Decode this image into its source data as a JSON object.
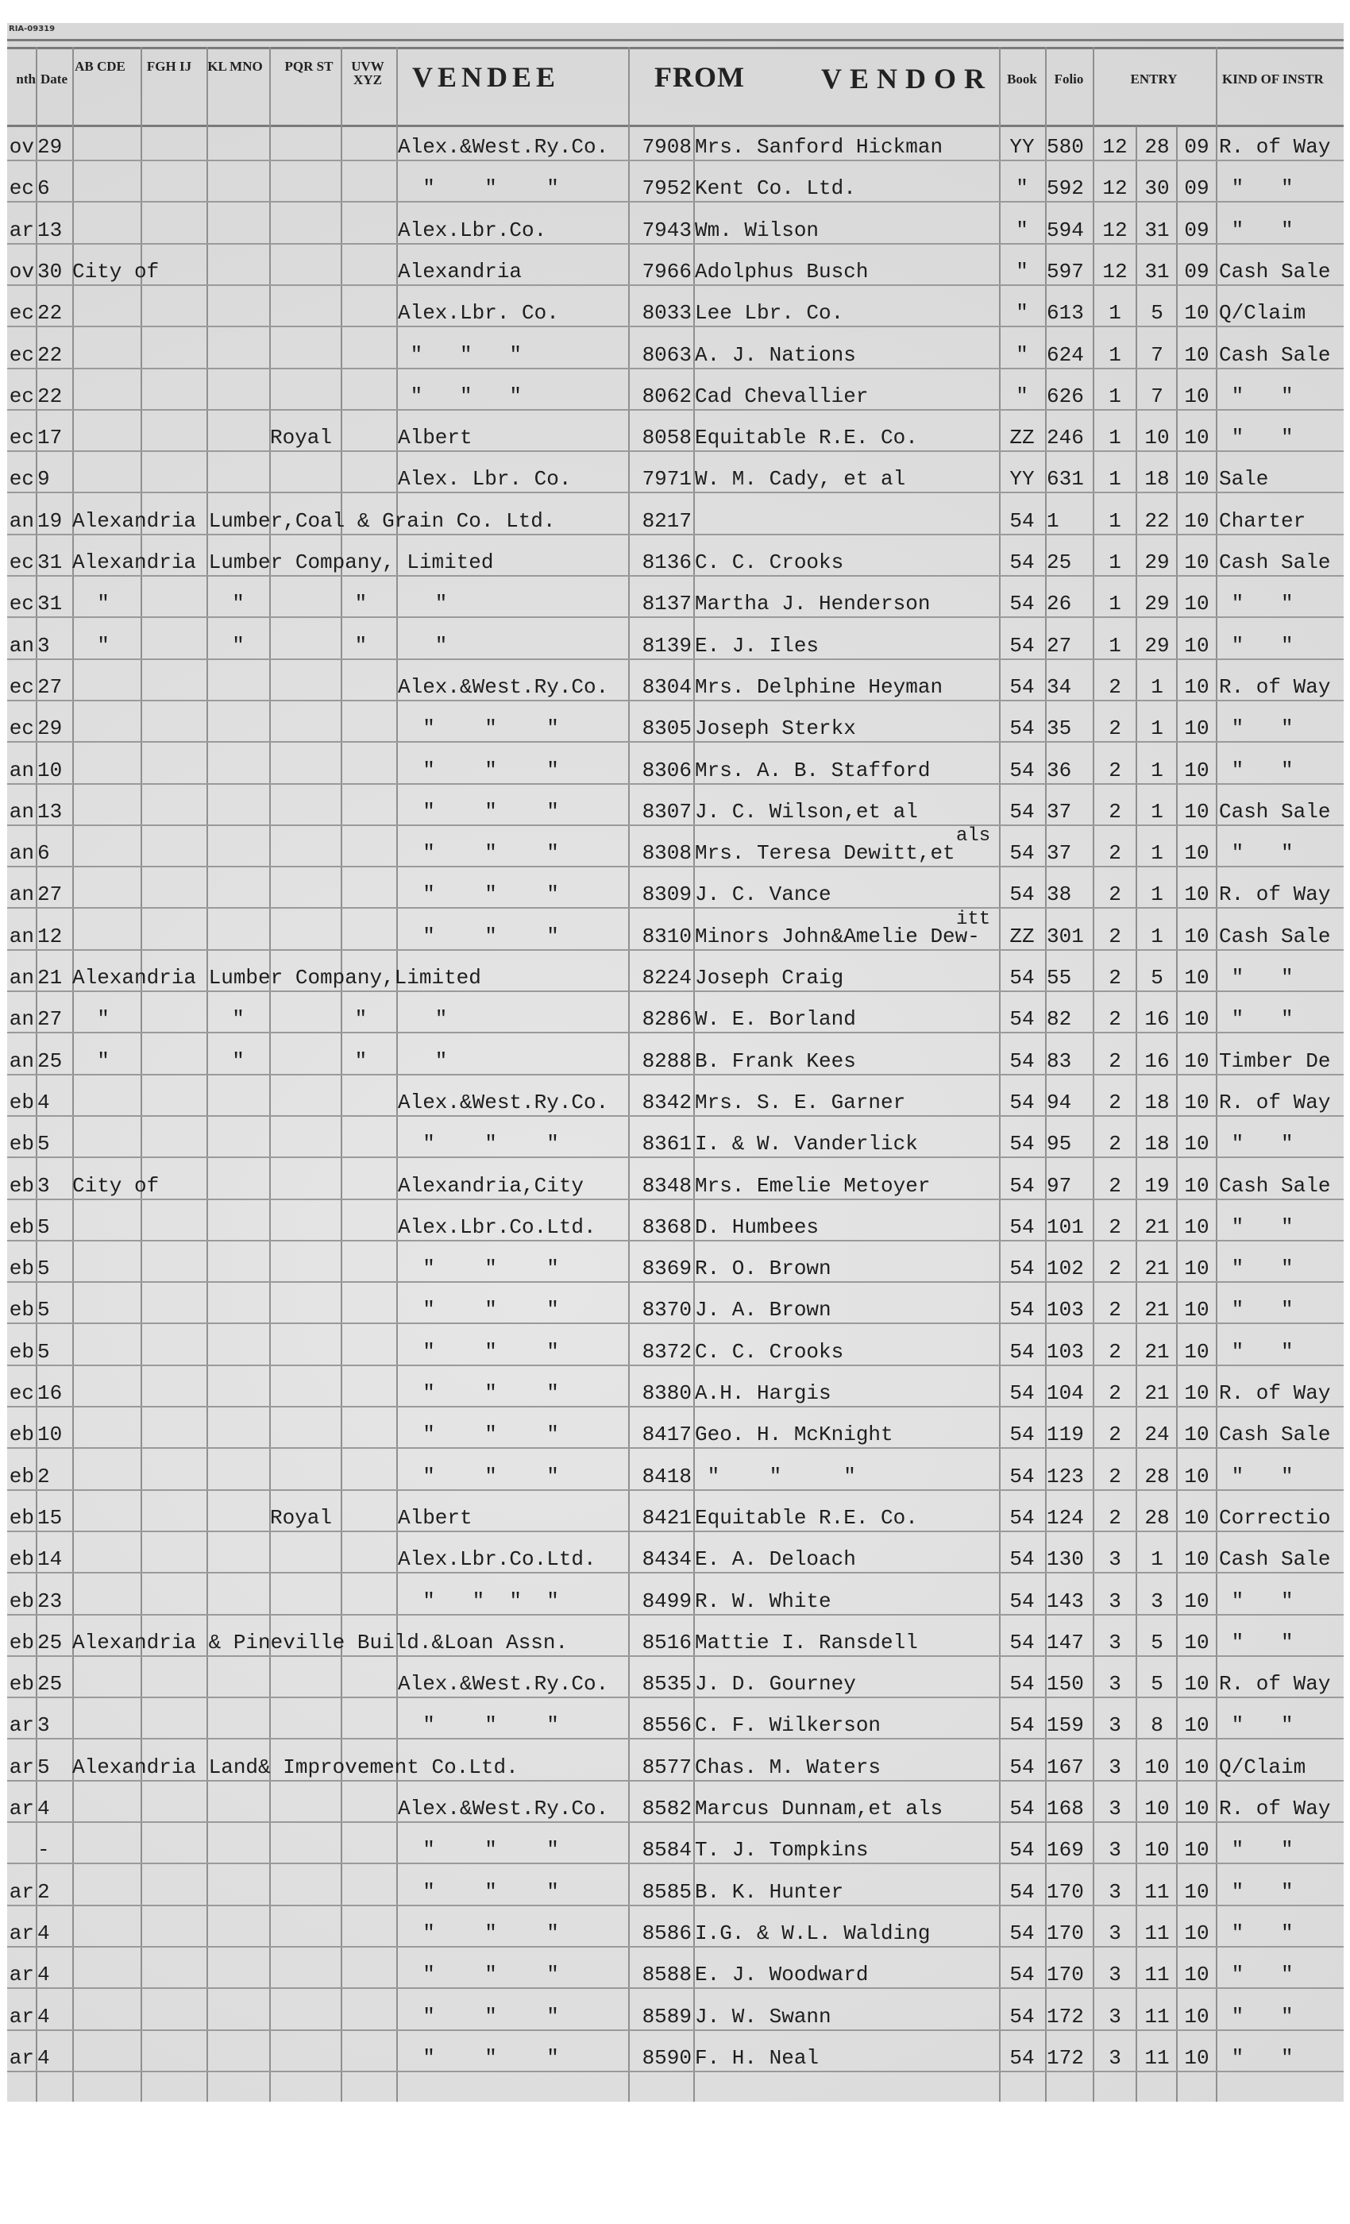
{
  "stamp": "RIA-09319",
  "header": {
    "month": "nth",
    "date": "Date",
    "ab": "AB CDE",
    "fg": "FGH IJ",
    "kl": "KL MNO",
    "pq": "PQR ST",
    "uv": "UVW XYZ",
    "vendee": "VENDEE",
    "from": "FROM",
    "vendor": "VENDOR",
    "book": "Book",
    "folio": "Folio",
    "entry": "ENTRY",
    "kind": "KIND OF INSTR"
  },
  "rows": [
    {
      "m": "ov",
      "d": "29",
      "ve": "Alex.&West.Ry.Co.",
      "no": "7908",
      "vo": "Mrs. Sanford Hickman",
      "bk": "YY",
      "fo": "580",
      "em": "12",
      "ed": "28",
      "ey": "09",
      "k": "R. of Way"
    },
    {
      "m": "ec",
      "d": "6",
      "ve": "  \"    \"    \"",
      "no": "7952",
      "vo": "Kent Co. Ltd.",
      "bk": "\"",
      "fo": "592",
      "em": "12",
      "ed": "30",
      "ey": "09",
      "k": " \"   \""
    },
    {
      "m": "ar",
      "d": "13",
      "ve": "Alex.Lbr.Co.",
      "no": "7943",
      "vo": "Wm. Wilson",
      "bk": "\"",
      "fo": "594",
      "em": "12",
      "ed": "31",
      "ey": "09",
      "k": " \"   \""
    },
    {
      "m": "ov",
      "d": "30",
      "ab": "City of",
      "ve": "Alexandria",
      "no": "7966",
      "vo": "Adolphus Busch",
      "bk": "\"",
      "fo": "597",
      "em": "12",
      "ed": "31",
      "ey": "09",
      "k": "Cash Sale"
    },
    {
      "m": "ec",
      "d": "22",
      "ve": "Alex.Lbr. Co.",
      "no": "8033",
      "vo": "Lee Lbr. Co.",
      "bk": "\"",
      "fo": "613",
      "em": "1",
      "ed": "5",
      "ey": "10",
      "k": "Q/Claim"
    },
    {
      "m": "ec",
      "d": "22",
      "ve": " \"   \"   \"",
      "no": "8063",
      "vo": "A. J. Nations",
      "bk": "\"",
      "fo": "624",
      "em": "1",
      "ed": "7",
      "ey": "10",
      "k": "Cash Sale"
    },
    {
      "m": "ec",
      "d": "22",
      "ve": " \"   \"   \"",
      "no": "8062",
      "vo": "Cad Chevallier",
      "bk": "\"",
      "fo": "626",
      "em": "1",
      "ed": "7",
      "ey": "10",
      "k": " \"   \""
    },
    {
      "m": "ec",
      "d": "17",
      "pq": "Royal",
      "ve": "Albert",
      "no": "8058",
      "vo": "Equitable R.E. Co.",
      "bk": "ZZ",
      "fo": "246",
      "em": "1",
      "ed": "10",
      "ey": "10",
      "k": " \"   \""
    },
    {
      "m": "ec",
      "d": "9",
      "ve": "Alex. Lbr. Co.",
      "no": "7971",
      "vo": "W. M. Cady, et al",
      "bk": "YY",
      "fo": "631",
      "em": "1",
      "ed": "18",
      "ey": "10",
      "k": "Sale"
    },
    {
      "m": "an",
      "d": "19",
      "ab": "Alexandria Lumber,Coal & Grain Co. Ltd.",
      "no": "8217",
      "vo": "",
      "bk": "54",
      "fo": "1",
      "em": "1",
      "ed": "22",
      "ey": "10",
      "k": "Charter"
    },
    {
      "m": "ec",
      "d": "31",
      "ab": "Alexandria Lumber Company, Limited",
      "no": "8136",
      "vo": "C. C. Crooks",
      "bk": "54",
      "fo": "25",
      "em": "1",
      "ed": "29",
      "ey": "10",
      "k": "Cash Sale"
    },
    {
      "m": "ec",
      "d": "31",
      "ab": "  \"",
      "kl": "  \"",
      "uv": " \"",
      "ve": "   \"",
      "no": "8137",
      "vo": "Martha J. Henderson",
      "bk": "54",
      "fo": "26",
      "em": "1",
      "ed": "29",
      "ey": "10",
      "k": " \"   \""
    },
    {
      "m": "an",
      "d": "3",
      "ab": "  \"",
      "kl": "  \"",
      "uv": " \"",
      "ve": "   \"",
      "no": "8139",
      "vo": "E. J. Iles",
      "bk": "54",
      "fo": "27",
      "em": "1",
      "ed": "29",
      "ey": "10",
      "k": " \"   \""
    },
    {
      "m": "ec",
      "d": "27",
      "ve": "Alex.&West.Ry.Co.",
      "no": "8304",
      "vo": "Mrs. Delphine Heyman",
      "bk": "54",
      "fo": "34",
      "em": "2",
      "ed": "1",
      "ey": "10",
      "k": "R. of Way"
    },
    {
      "m": "ec",
      "d": "29",
      "ve": "  \"    \"    \"",
      "no": "8305",
      "vo": "Joseph Sterkx",
      "bk": "54",
      "fo": "35",
      "em": "2",
      "ed": "1",
      "ey": "10",
      "k": " \"   \""
    },
    {
      "m": "an",
      "d": "10",
      "ve": "  \"    \"    \"",
      "no": "8306",
      "vo": "Mrs. A. B. Stafford",
      "bk": "54",
      "fo": "36",
      "em": "2",
      "ed": "1",
      "ey": "10",
      "k": " \"   \""
    },
    {
      "m": "an",
      "d": "13",
      "ve": "  \"    \"    \"",
      "no": "8307",
      "vo": "J. C. Wilson,et al",
      "bk": "54",
      "fo": "37",
      "em": "2",
      "ed": "1",
      "ey": "10",
      "k": "Cash Sale"
    },
    {
      "m": "an",
      "d": "6",
      "ve": "  \"    \"    \"",
      "no": "8308",
      "vo": "Mrs. Teresa Dewitt,et",
      "vn": "als",
      "bk": "54",
      "fo": "37",
      "em": "2",
      "ed": "1",
      "ey": "10",
      "k": " \"   \""
    },
    {
      "m": "an",
      "d": "27",
      "ve": "  \"    \"    \"",
      "no": "8309",
      "vo": "J. C. Vance",
      "bk": "54",
      "fo": "38",
      "em": "2",
      "ed": "1",
      "ey": "10",
      "k": "R. of Way"
    },
    {
      "m": "an",
      "d": "12",
      "ve": "  \"    \"    \"",
      "no": "8310",
      "vo": "Minors John&Amelie Dew-",
      "vn": "itt",
      "bk": "ZZ",
      "fo": "301",
      "em": "2",
      "ed": "1",
      "ey": "10",
      "k": "Cash Sale"
    },
    {
      "m": "an",
      "d": "21",
      "ab": "Alexandria Lumber Company,Limited",
      "no": "8224",
      "vo": "Joseph Craig",
      "bk": "54",
      "fo": "55",
      "em": "2",
      "ed": "5",
      "ey": "10",
      "k": " \"   \""
    },
    {
      "m": "an",
      "d": "27",
      "ab": "  \"",
      "kl": "  \"",
      "uv": " \"",
      "ve": "   \"",
      "no": "8286",
      "vo": "W. E. Borland",
      "bk": "54",
      "fo": "82",
      "em": "2",
      "ed": "16",
      "ey": "10",
      "k": " \"   \""
    },
    {
      "m": "an",
      "d": "25",
      "ab": "  \"",
      "kl": "  \"",
      "uv": " \"",
      "ve": "   \"",
      "no": "8288",
      "vo": "B. Frank Kees",
      "bk": "54",
      "fo": "83",
      "em": "2",
      "ed": "16",
      "ey": "10",
      "k": "Timber De"
    },
    {
      "m": "eb",
      "d": "4",
      "ve": "Alex.&West.Ry.Co.",
      "no": "8342",
      "vo": "Mrs. S. E. Garner",
      "bk": "54",
      "fo": "94",
      "em": "2",
      "ed": "18",
      "ey": "10",
      "k": "R. of Way"
    },
    {
      "m": "eb",
      "d": "5",
      "ve": "  \"    \"    \"",
      "no": "8361",
      "vo": "I. & W. Vanderlick",
      "bk": "54",
      "fo": "95",
      "em": "2",
      "ed": "18",
      "ey": "10",
      "k": " \"   \""
    },
    {
      "m": "eb",
      "d": "3",
      "ab": "City of",
      "ve": "Alexandria,City",
      "no": "8348",
      "vo": "Mrs. Emelie Metoyer",
      "bk": "54",
      "fo": "97",
      "em": "2",
      "ed": "19",
      "ey": "10",
      "k": "Cash Sale"
    },
    {
      "m": "eb",
      "d": "5",
      "ve": "Alex.Lbr.Co.Ltd.",
      "no": "8368",
      "vo": "D. Humbees",
      "bk": "54",
      "fo": "101",
      "em": "2",
      "ed": "21",
      "ey": "10",
      "k": " \"   \""
    },
    {
      "m": "eb",
      "d": "5",
      "ve": "  \"    \"    \"",
      "no": "8369",
      "vo": "R. O. Brown",
      "bk": "54",
      "fo": "102",
      "em": "2",
      "ed": "21",
      "ey": "10",
      "k": " \"   \""
    },
    {
      "m": "eb",
      "d": "5",
      "ve": "  \"    \"    \"",
      "no": "8370",
      "vo": "J. A. Brown",
      "bk": "54",
      "fo": "103",
      "em": "2",
      "ed": "21",
      "ey": "10",
      "k": " \"   \""
    },
    {
      "m": "eb",
      "d": "5",
      "ve": "  \"    \"    \"",
      "no": "8372",
      "vo": "C. C. Crooks",
      "bk": "54",
      "fo": "103",
      "em": "2",
      "ed": "21",
      "ey": "10",
      "k": " \"   \""
    },
    {
      "m": "ec",
      "d": "16",
      "ve": "  \"    \"    \"",
      "no": "8380",
      "vo": "A.H. Hargis",
      "bk": "54",
      "fo": "104",
      "em": "2",
      "ed": "21",
      "ey": "10",
      "k": "R. of Way"
    },
    {
      "m": "eb",
      "d": "10",
      "ve": "  \"    \"    \"",
      "no": "8417",
      "vo": "Geo. H. McKnight",
      "bk": "54",
      "fo": "119",
      "em": "2",
      "ed": "24",
      "ey": "10",
      "k": "Cash Sale"
    },
    {
      "m": "eb",
      "d": "2",
      "ve": "  \"    \"    \"",
      "no": "8418",
      "vo": " \"    \"     \"",
      "bk": "54",
      "fo": "123",
      "em": "2",
      "ed": "28",
      "ey": "10",
      "k": " \"   \""
    },
    {
      "m": "eb",
      "d": "15",
      "pq": "Royal",
      "ve": "Albert",
      "no": "8421",
      "vo": "Equitable R.E. Co.",
      "bk": "54",
      "fo": "124",
      "em": "2",
      "ed": "28",
      "ey": "10",
      "k": "Correctio"
    },
    {
      "m": "eb",
      "d": "14",
      "ve": "Alex.Lbr.Co.Ltd.",
      "no": "8434",
      "vo": "E. A. Deloach",
      "bk": "54",
      "fo": "130",
      "em": "3",
      "ed": "1",
      "ey": "10",
      "k": "Cash Sale"
    },
    {
      "m": "eb",
      "d": "23",
      "ve": "  \"   \"  \"  \"",
      "no": "8499",
      "vo": "R. W. White",
      "bk": "54",
      "fo": "143",
      "em": "3",
      "ed": "3",
      "ey": "10",
      "k": " \"   \""
    },
    {
      "m": "eb",
      "d": "25",
      "ab": "Alexandria & Pineville Build.&Loan Assn.",
      "no": "8516",
      "vo": "Mattie I. Ransdell",
      "bk": "54",
      "fo": "147",
      "em": "3",
      "ed": "5",
      "ey": "10",
      "k": " \"   \""
    },
    {
      "m": "eb",
      "d": "25",
      "ve": "Alex.&West.Ry.Co.",
      "no": "8535",
      "vo": "J. D. Gourney",
      "bk": "54",
      "fo": "150",
      "em": "3",
      "ed": "5",
      "ey": "10",
      "k": "R. of Way"
    },
    {
      "m": "ar",
      "d": "3",
      "ve": "  \"    \"    \"",
      "no": "8556",
      "vo": "C. F. Wilkerson",
      "bk": "54",
      "fo": "159",
      "em": "3",
      "ed": "8",
      "ey": "10",
      "k": " \"   \""
    },
    {
      "m": "ar",
      "d": "5",
      "ab": "Alexandria Land& Improvement Co.Ltd.",
      "no": "8577",
      "vo": "Chas. M. Waters",
      "bk": "54",
      "fo": "167",
      "em": "3",
      "ed": "10",
      "ey": "10",
      "k": "Q/Claim"
    },
    {
      "m": "ar",
      "d": "4",
      "ve": "Alex.&West.Ry.Co.",
      "no": "8582",
      "vo": "Marcus Dunnam,et als",
      "bk": "54",
      "fo": "168",
      "em": "3",
      "ed": "10",
      "ey": "10",
      "k": "R. of Way"
    },
    {
      "m": "",
      "d": "-",
      "ve": "  \"    \"    \"",
      "no": "8584",
      "vo": "T. J. Tompkins",
      "bk": "54",
      "fo": "169",
      "em": "3",
      "ed": "10",
      "ey": "10",
      "k": " \"   \""
    },
    {
      "m": "ar",
      "d": "2",
      "ve": "  \"    \"    \"",
      "no": "8585",
      "vo": "B. K. Hunter",
      "bk": "54",
      "fo": "170",
      "em": "3",
      "ed": "11",
      "ey": "10",
      "k": " \"   \""
    },
    {
      "m": "ar",
      "d": "4",
      "ve": "  \"    \"    \"",
      "no": "8586",
      "vo": "I.G. & W.L. Walding",
      "bk": "54",
      "fo": "170",
      "em": "3",
      "ed": "11",
      "ey": "10",
      "k": " \"   \""
    },
    {
      "m": "ar",
      "d": "4",
      "ve": "  \"    \"    \"",
      "no": "8588",
      "vo": "E. J. Woodward",
      "bk": "54",
      "fo": "170",
      "em": "3",
      "ed": "11",
      "ey": "10",
      "k": " \"   \""
    },
    {
      "m": "ar",
      "d": "4",
      "ve": "  \"    \"    \"",
      "no": "8589",
      "vo": "J. W. Swann",
      "bk": "54",
      "fo": "172",
      "em": "3",
      "ed": "11",
      "ey": "10",
      "k": " \"   \""
    },
    {
      "m": "ar",
      "d": "4",
      "ve": "  \"    \"    \"",
      "no": "8590",
      "vo": "F. H. Neal",
      "bk": "54",
      "fo": "172",
      "em": "3",
      "ed": "11",
      "ey": "10",
      "k": " \"   \""
    }
  ]
}
